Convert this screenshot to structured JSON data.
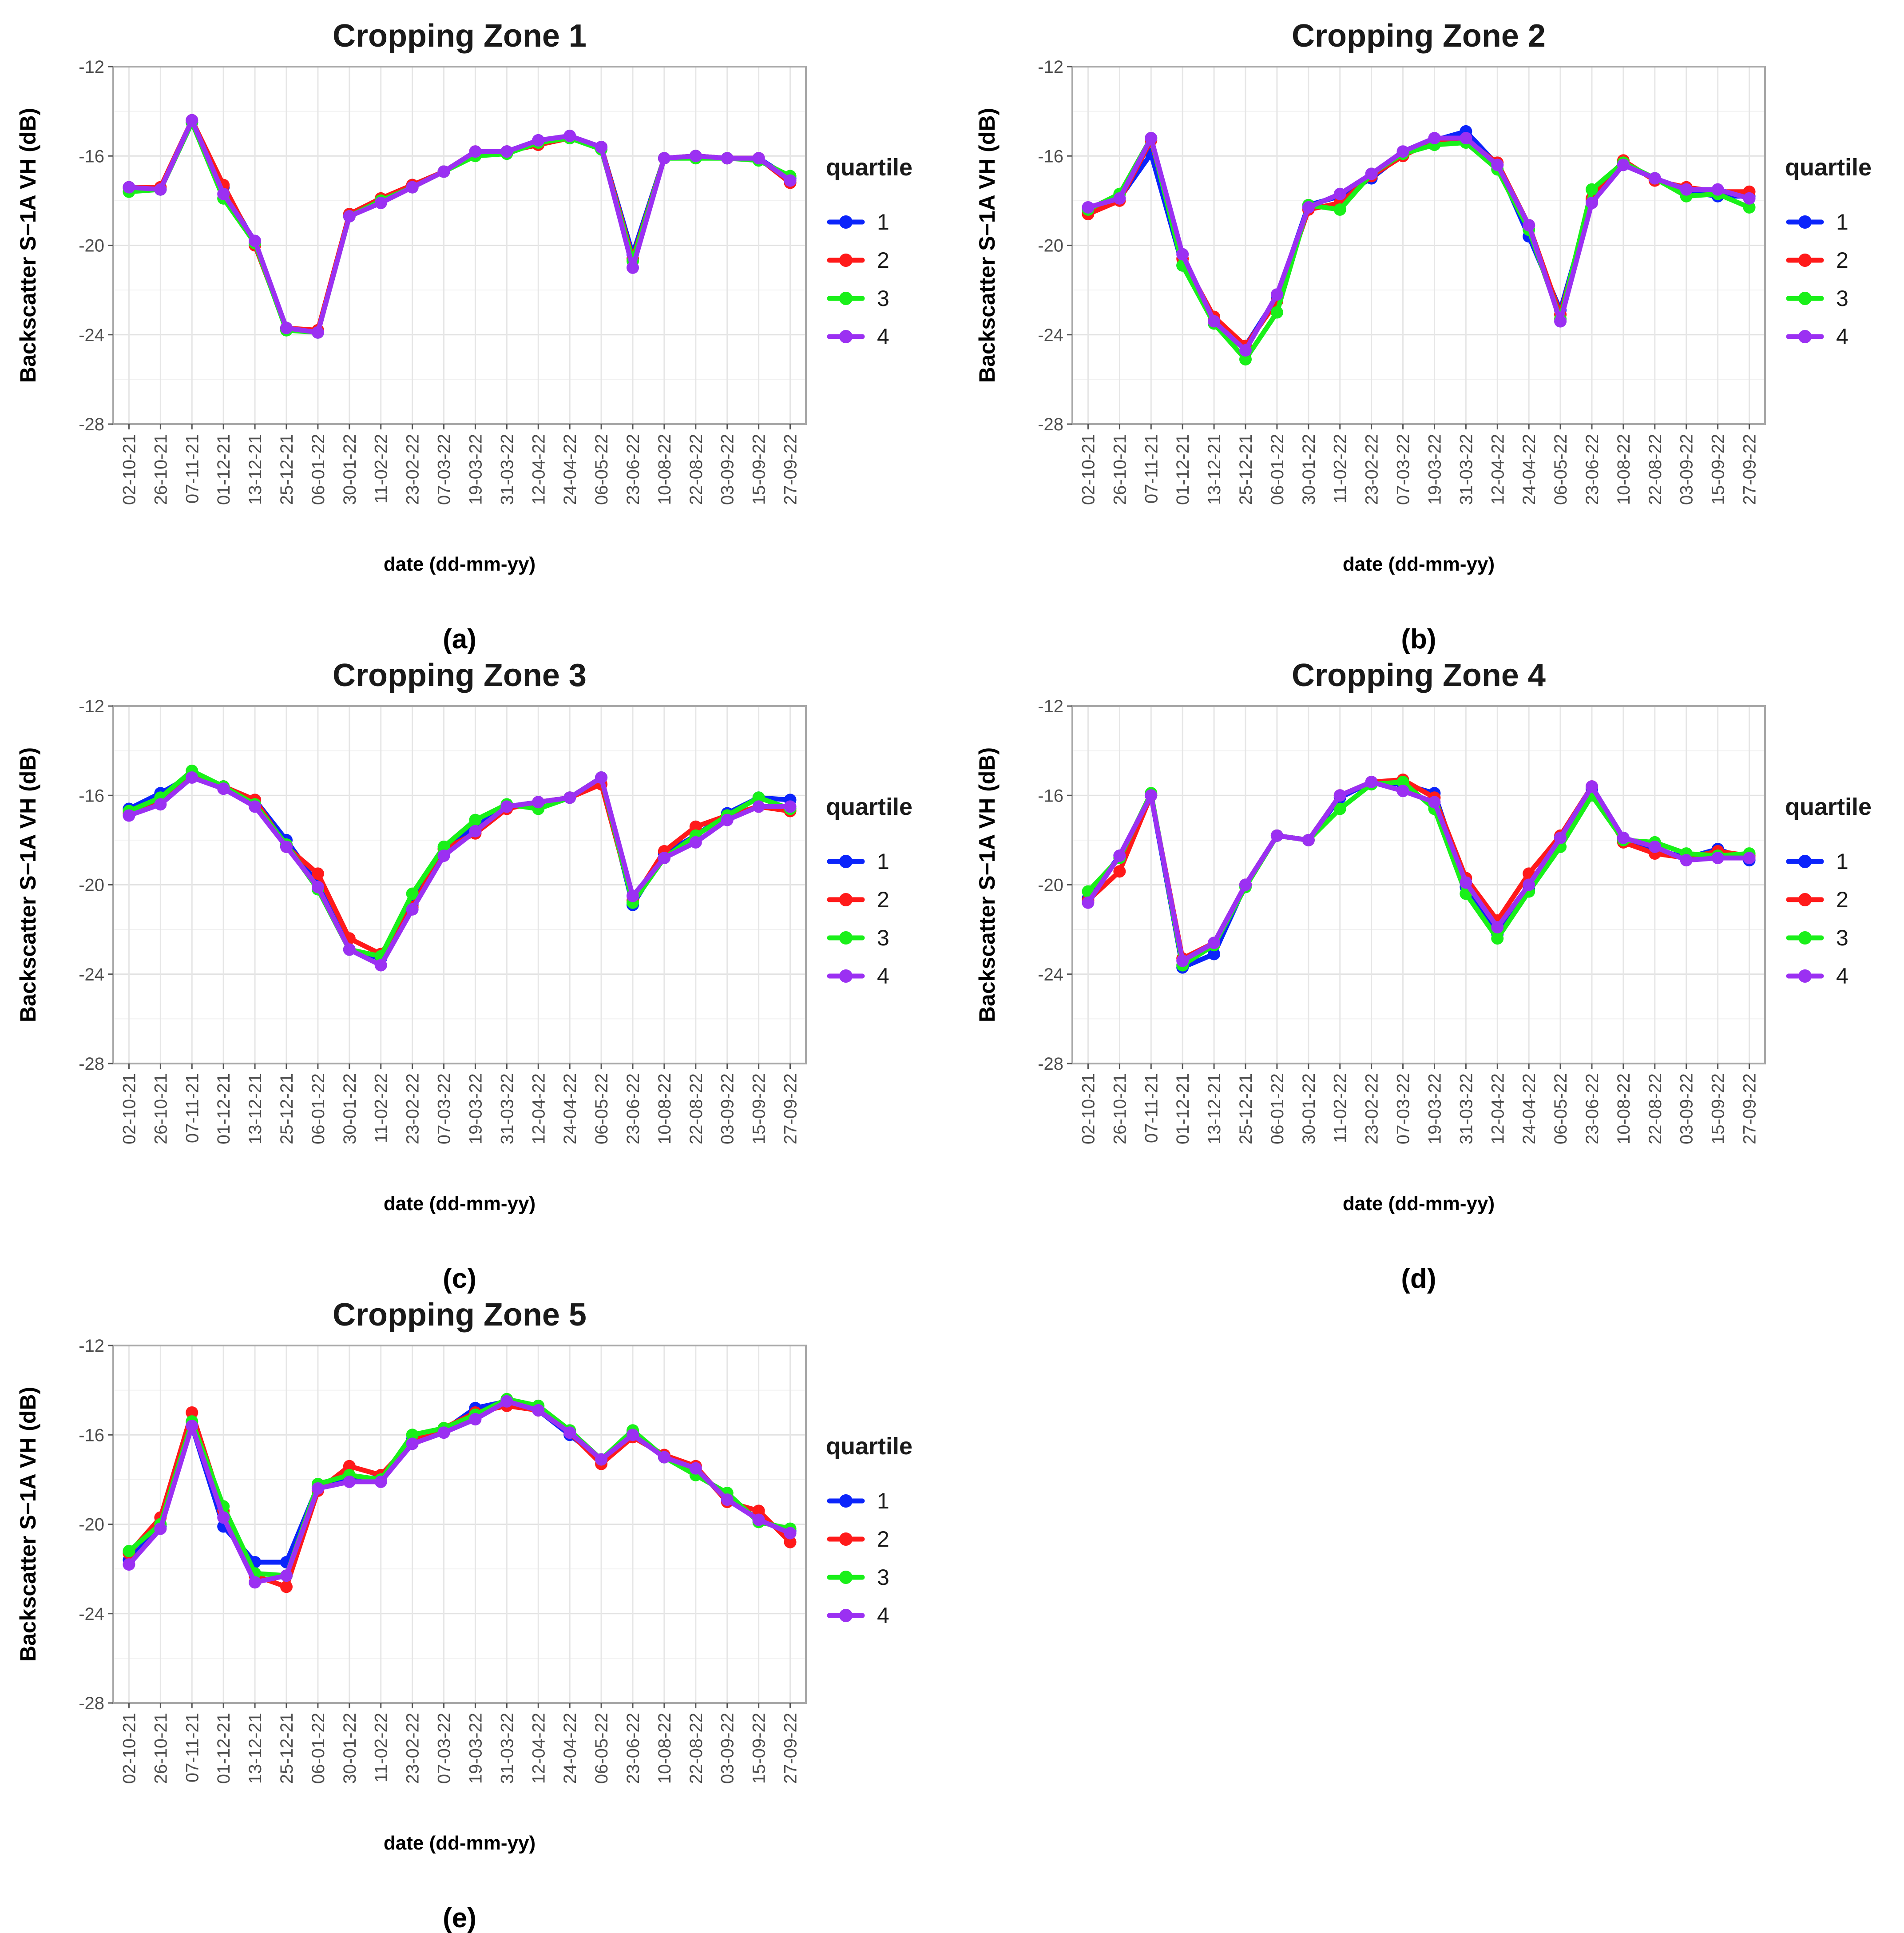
{
  "figure": {
    "y_axis_label": "Backscatter S−1A VH (dB)",
    "x_axis_label": "date (dd-mm-yy)",
    "legend_title": "quartile",
    "series_colors": [
      "#0b24fb",
      "#ff1a1a",
      "#19f019",
      "#9b30f2"
    ]
  },
  "chart_data": [
    {
      "type": "line",
      "title": "Cropping Zone 1",
      "panel_label": "(a)",
      "xlabel": "date (dd-mm-yy)",
      "ylabel": "Backscatter S−1A VH (dB)",
      "ylim": [
        -28,
        -12
      ],
      "yticks": [
        -12,
        -16,
        -20,
        -24,
        -28
      ],
      "legend_title": "quartile",
      "categories": [
        "02-10-21",
        "26-10-21",
        "07-11-21",
        "01-12-21",
        "13-12-21",
        "25-12-21",
        "06-01-22",
        "30-01-22",
        "11-02-22",
        "23-02-22",
        "07-03-22",
        "19-03-22",
        "31-03-22",
        "12-04-22",
        "24-04-22",
        "06-05-22",
        "23-06-22",
        "10-08-22",
        "22-08-22",
        "03-09-22",
        "15-09-22",
        "27-09-22"
      ],
      "series": [
        {
          "name": "1",
          "values": [
            -17.4,
            -17.5,
            -14.5,
            -17.4,
            -19.9,
            -23.7,
            -23.9,
            -18.6,
            -18.0,
            -17.3,
            -16.7,
            -15.9,
            -15.8,
            -15.3,
            -15.2,
            -15.6,
            -20.4,
            -16.1,
            -16.0,
            -16.1,
            -16.1,
            -17.0
          ]
        },
        {
          "name": "2",
          "values": [
            -17.4,
            -17.4,
            -14.4,
            -17.3,
            -20.0,
            -23.7,
            -23.8,
            -18.6,
            -17.9,
            -17.3,
            -16.7,
            -15.8,
            -15.8,
            -15.5,
            -15.2,
            -15.6,
            -20.6,
            -16.1,
            -16.0,
            -16.1,
            -16.1,
            -17.2
          ]
        },
        {
          "name": "3",
          "values": [
            -17.6,
            -17.5,
            -14.5,
            -17.9,
            -19.9,
            -23.8,
            -23.9,
            -18.7,
            -18.0,
            -17.4,
            -16.7,
            -16.0,
            -15.9,
            -15.4,
            -15.2,
            -15.7,
            -20.7,
            -16.1,
            -16.1,
            -16.1,
            -16.2,
            -16.9
          ]
        },
        {
          "name": "4",
          "values": [
            -17.4,
            -17.5,
            -14.4,
            -17.7,
            -19.8,
            -23.7,
            -23.9,
            -18.7,
            -18.1,
            -17.4,
            -16.7,
            -15.8,
            -15.8,
            -15.3,
            -15.1,
            -15.6,
            -21.0,
            -16.1,
            -16.0,
            -16.1,
            -16.1,
            -17.1
          ]
        }
      ]
    },
    {
      "type": "line",
      "title": "Cropping Zone 2",
      "panel_label": "(b)",
      "xlabel": "date (dd-mm-yy)",
      "ylabel": "Backscatter S−1A VH (dB)",
      "ylim": [
        -28,
        -12
      ],
      "yticks": [
        -12,
        -16,
        -20,
        -24,
        -28
      ],
      "legend_title": "quartile",
      "categories": [
        "02-10-21",
        "26-10-21",
        "07-11-21",
        "01-12-21",
        "13-12-21",
        "25-12-21",
        "06-01-22",
        "30-01-22",
        "11-02-22",
        "23-02-22",
        "07-03-22",
        "19-03-22",
        "31-03-22",
        "12-04-22",
        "24-04-22",
        "06-05-22",
        "23-06-22",
        "10-08-22",
        "22-08-22",
        "03-09-22",
        "15-09-22",
        "27-09-22"
      ],
      "series": [
        {
          "name": "1",
          "values": [
            -18.4,
            -17.9,
            -15.9,
            -20.9,
            -23.4,
            -24.5,
            -22.3,
            -18.2,
            -17.8,
            -17.0,
            -15.9,
            -15.3,
            -14.9,
            -16.4,
            -19.6,
            -22.9,
            -18.0,
            -16.4,
            -17.0,
            -17.6,
            -17.8,
            -17.8
          ]
        },
        {
          "name": "2",
          "values": [
            -18.6,
            -18.0,
            -15.3,
            -20.6,
            -23.2,
            -24.5,
            -22.5,
            -18.4,
            -18.1,
            -16.9,
            -16.0,
            -15.3,
            -15.3,
            -16.3,
            -19.1,
            -23.1,
            -17.9,
            -16.2,
            -17.1,
            -17.4,
            -17.6,
            -17.6
          ]
        },
        {
          "name": "3",
          "values": [
            -18.4,
            -17.7,
            -15.2,
            -20.9,
            -23.5,
            -25.1,
            -23.0,
            -18.2,
            -18.4,
            -16.8,
            -15.9,
            -15.5,
            -15.4,
            -16.6,
            -19.3,
            -23.3,
            -17.5,
            -16.3,
            -17.0,
            -17.8,
            -17.7,
            -18.3
          ]
        },
        {
          "name": "4",
          "values": [
            -18.3,
            -17.9,
            -15.2,
            -20.4,
            -23.4,
            -24.7,
            -22.2,
            -18.3,
            -17.7,
            -16.8,
            -15.8,
            -15.2,
            -15.2,
            -16.4,
            -19.1,
            -23.4,
            -18.1,
            -16.4,
            -17.0,
            -17.5,
            -17.5,
            -17.9
          ]
        }
      ]
    },
    {
      "type": "line",
      "title": "Cropping Zone 3",
      "panel_label": "(c)",
      "xlabel": "date (dd-mm-yy)",
      "ylabel": "Backscatter S−1A VH (dB)",
      "ylim": [
        -28,
        -12
      ],
      "yticks": [
        -12,
        -16,
        -20,
        -24,
        -28
      ],
      "legend_title": "quartile",
      "categories": [
        "02-10-21",
        "26-10-21",
        "07-11-21",
        "01-12-21",
        "13-12-21",
        "25-12-21",
        "06-01-22",
        "30-01-22",
        "11-02-22",
        "23-02-22",
        "07-03-22",
        "19-03-22",
        "31-03-22",
        "12-04-22",
        "24-04-22",
        "06-05-22",
        "23-06-22",
        "10-08-22",
        "22-08-22",
        "03-09-22",
        "15-09-22",
        "27-09-22"
      ],
      "series": [
        {
          "name": "1",
          "values": [
            -16.6,
            -15.9,
            -15.1,
            -15.6,
            -16.2,
            -18.0,
            -20.0,
            -22.9,
            -23.3,
            -20.9,
            -18.4,
            -17.4,
            -16.5,
            -16.3,
            -16.1,
            -15.2,
            -20.9,
            -18.6,
            -17.8,
            -16.8,
            -16.1,
            -16.2
          ]
        },
        {
          "name": "2",
          "values": [
            -16.8,
            -16.2,
            -15.1,
            -15.6,
            -16.2,
            -18.3,
            -19.5,
            -22.4,
            -23.1,
            -21.0,
            -18.4,
            -17.7,
            -16.6,
            -16.3,
            -16.1,
            -15.5,
            -20.7,
            -18.5,
            -17.4,
            -16.9,
            -16.5,
            -16.7
          ]
        },
        {
          "name": "3",
          "values": [
            -16.7,
            -16.1,
            -14.9,
            -15.6,
            -16.4,
            -18.2,
            -20.2,
            -22.9,
            -23.2,
            -20.4,
            -18.3,
            -17.1,
            -16.4,
            -16.6,
            -16.1,
            -15.2,
            -20.8,
            -18.8,
            -17.8,
            -16.9,
            -16.1,
            -16.6
          ]
        },
        {
          "name": "4",
          "values": [
            -16.9,
            -16.4,
            -15.2,
            -15.7,
            -16.5,
            -18.3,
            -20.1,
            -22.9,
            -23.6,
            -21.1,
            -18.7,
            -17.6,
            -16.5,
            -16.3,
            -16.1,
            -15.2,
            -20.5,
            -18.8,
            -18.1,
            -17.1,
            -16.5,
            -16.5
          ]
        }
      ]
    },
    {
      "type": "line",
      "title": "Cropping Zone 4",
      "panel_label": "(d)",
      "xlabel": "date (dd-mm-yy)",
      "ylabel": "Backscatter S−1A VH (dB)",
      "ylim": [
        -28,
        -12
      ],
      "yticks": [
        -12,
        -16,
        -20,
        -24,
        -28
      ],
      "legend_title": "quartile",
      "categories": [
        "02-10-21",
        "26-10-21",
        "07-11-21",
        "01-12-21",
        "13-12-21",
        "25-12-21",
        "06-01-22",
        "30-01-22",
        "11-02-22",
        "23-02-22",
        "07-03-22",
        "19-03-22",
        "31-03-22",
        "12-04-22",
        "24-04-22",
        "06-05-22",
        "23-06-22",
        "10-08-22",
        "22-08-22",
        "03-09-22",
        "15-09-22",
        "27-09-22"
      ],
      "series": [
        {
          "name": "1",
          "values": [
            -20.6,
            -18.7,
            -16.0,
            -23.7,
            -23.1,
            -20.0,
            -17.8,
            -18.0,
            -16.1,
            -15.4,
            -15.5,
            -15.9,
            -20.1,
            -22.2,
            -20.2,
            -17.9,
            -15.7,
            -17.9,
            -18.4,
            -18.8,
            -18.4,
            -18.9
          ]
        },
        {
          "name": "2",
          "values": [
            -20.7,
            -19.4,
            -16.0,
            -23.3,
            -22.6,
            -20.0,
            -17.8,
            -18.0,
            -16.0,
            -15.4,
            -15.3,
            -16.1,
            -19.7,
            -21.6,
            -19.5,
            -17.8,
            -15.6,
            -18.1,
            -18.6,
            -18.8,
            -18.5,
            -18.7
          ]
        },
        {
          "name": "3",
          "values": [
            -20.3,
            -18.8,
            -15.9,
            -23.6,
            -22.7,
            -20.1,
            -17.8,
            -18.0,
            -16.6,
            -15.5,
            -15.4,
            -16.6,
            -20.4,
            -22.4,
            -20.3,
            -18.3,
            -16.0,
            -18.0,
            -18.1,
            -18.6,
            -18.7,
            -18.6
          ]
        },
        {
          "name": "4",
          "values": [
            -20.8,
            -18.7,
            -16.0,
            -23.4,
            -22.6,
            -20.0,
            -17.8,
            -18.0,
            -16.0,
            -15.4,
            -15.8,
            -16.3,
            -19.9,
            -21.9,
            -20.0,
            -17.9,
            -15.6,
            -17.9,
            -18.3,
            -18.9,
            -18.8,
            -18.8
          ]
        }
      ]
    },
    {
      "type": "line",
      "title": "Cropping Zone 5",
      "panel_label": "(e)",
      "xlabel": "date (dd-mm-yy)",
      "ylabel": "Backscatter S−1A VH (dB)",
      "ylim": [
        -28,
        -12
      ],
      "yticks": [
        -12,
        -16,
        -20,
        -24,
        -28
      ],
      "legend_title": "quartile",
      "categories": [
        "02-10-21",
        "26-10-21",
        "07-11-21",
        "01-12-21",
        "13-12-21",
        "25-12-21",
        "06-01-22",
        "30-01-22",
        "11-02-22",
        "23-02-22",
        "07-03-22",
        "19-03-22",
        "31-03-22",
        "12-04-22",
        "24-04-22",
        "06-05-22",
        "23-06-22",
        "10-08-22",
        "22-08-22",
        "03-09-22",
        "15-09-22",
        "27-09-22"
      ],
      "series": [
        {
          "name": "1",
          "values": [
            -21.6,
            -20.1,
            -15.6,
            -20.1,
            -21.7,
            -21.7,
            -18.3,
            -18.0,
            -17.9,
            -16.2,
            -15.8,
            -14.8,
            -14.5,
            -14.9,
            -16.0,
            -17.1,
            -15.9,
            -17.0,
            -17.6,
            -18.8,
            -19.8,
            -20.3
          ]
        },
        {
          "name": "2",
          "values": [
            -21.3,
            -19.7,
            -15.0,
            -19.4,
            -22.3,
            -22.8,
            -18.5,
            -17.4,
            -17.8,
            -16.3,
            -15.7,
            -15.0,
            -14.7,
            -14.9,
            -15.9,
            -17.3,
            -16.1,
            -16.9,
            -17.4,
            -19.0,
            -19.4,
            -20.8
          ]
        },
        {
          "name": "3",
          "values": [
            -21.2,
            -20.0,
            -15.4,
            -19.2,
            -22.2,
            -22.3,
            -18.2,
            -17.8,
            -18.0,
            -16.0,
            -15.7,
            -15.1,
            -14.4,
            -14.7,
            -15.8,
            -17.1,
            -15.8,
            -17.0,
            -17.8,
            -18.6,
            -19.9,
            -20.2
          ]
        },
        {
          "name": "4",
          "values": [
            -21.8,
            -20.2,
            -15.6,
            -19.7,
            -22.6,
            -22.3,
            -18.4,
            -18.1,
            -18.1,
            -16.4,
            -15.9,
            -15.3,
            -14.5,
            -14.9,
            -15.9,
            -17.1,
            -16.0,
            -17.0,
            -17.5,
            -18.9,
            -19.8,
            -20.4
          ]
        }
      ]
    }
  ]
}
